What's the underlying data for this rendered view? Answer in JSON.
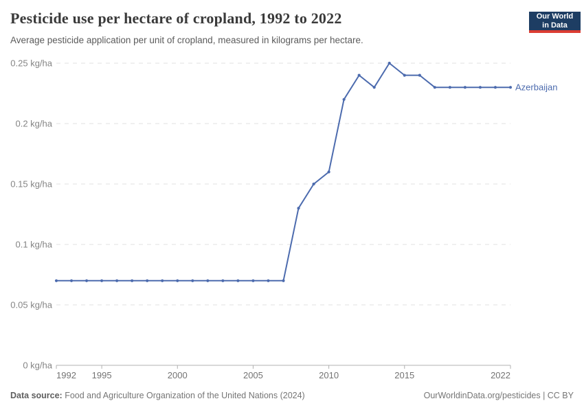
{
  "header": {
    "title": "Pesticide use per hectare of cropland, 1992 to 2022",
    "subtitle": "Average pesticide application per unit of cropland, measured in kilograms per hectare.",
    "logo_line1": "Our World",
    "logo_line2": "in Data"
  },
  "footer": {
    "source_label": "Data source:",
    "source_text": " Food and Agriculture Organization of the United Nations (2024)",
    "credit": "OurWorldinData.org/pesticides | CC BY"
  },
  "colors": {
    "line": "#4c6bae",
    "logo_navy": "#1d3d63",
    "logo_red": "#dc3d33",
    "gridline": "#e0e0e0",
    "axis": "#b0b0b0"
  },
  "chart_data": {
    "type": "line",
    "title": "Pesticide use per hectare of cropland, 1992 to 2022",
    "xlabel": "",
    "ylabel": "kg/ha",
    "xlim": [
      1992,
      2022
    ],
    "ylim": [
      0,
      0.25
    ],
    "xticks": [
      1992,
      1995,
      2000,
      2005,
      2010,
      2015,
      2022
    ],
    "yticks": [
      0,
      0.05,
      0.1,
      0.15,
      0.2,
      0.25
    ],
    "ytick_suffix": " kg/ha",
    "grid": "dashed-horizontal",
    "legend_position": "end-of-line",
    "series": [
      {
        "name": "Azerbaijan",
        "x": [
          1992,
          1993,
          1994,
          1995,
          1996,
          1997,
          1998,
          1999,
          2000,
          2001,
          2002,
          2003,
          2004,
          2005,
          2006,
          2007,
          2008,
          2009,
          2010,
          2011,
          2012,
          2013,
          2014,
          2015,
          2016,
          2017,
          2018,
          2019,
          2020,
          2021,
          2022
        ],
        "values": [
          0.07,
          0.07,
          0.07,
          0.07,
          0.07,
          0.07,
          0.07,
          0.07,
          0.07,
          0.07,
          0.07,
          0.07,
          0.07,
          0.07,
          0.07,
          0.07,
          0.13,
          0.15,
          0.16,
          0.22,
          0.24,
          0.23,
          0.25,
          0.24,
          0.24,
          0.23,
          0.23,
          0.23,
          0.23,
          0.23,
          0.23
        ]
      }
    ]
  }
}
